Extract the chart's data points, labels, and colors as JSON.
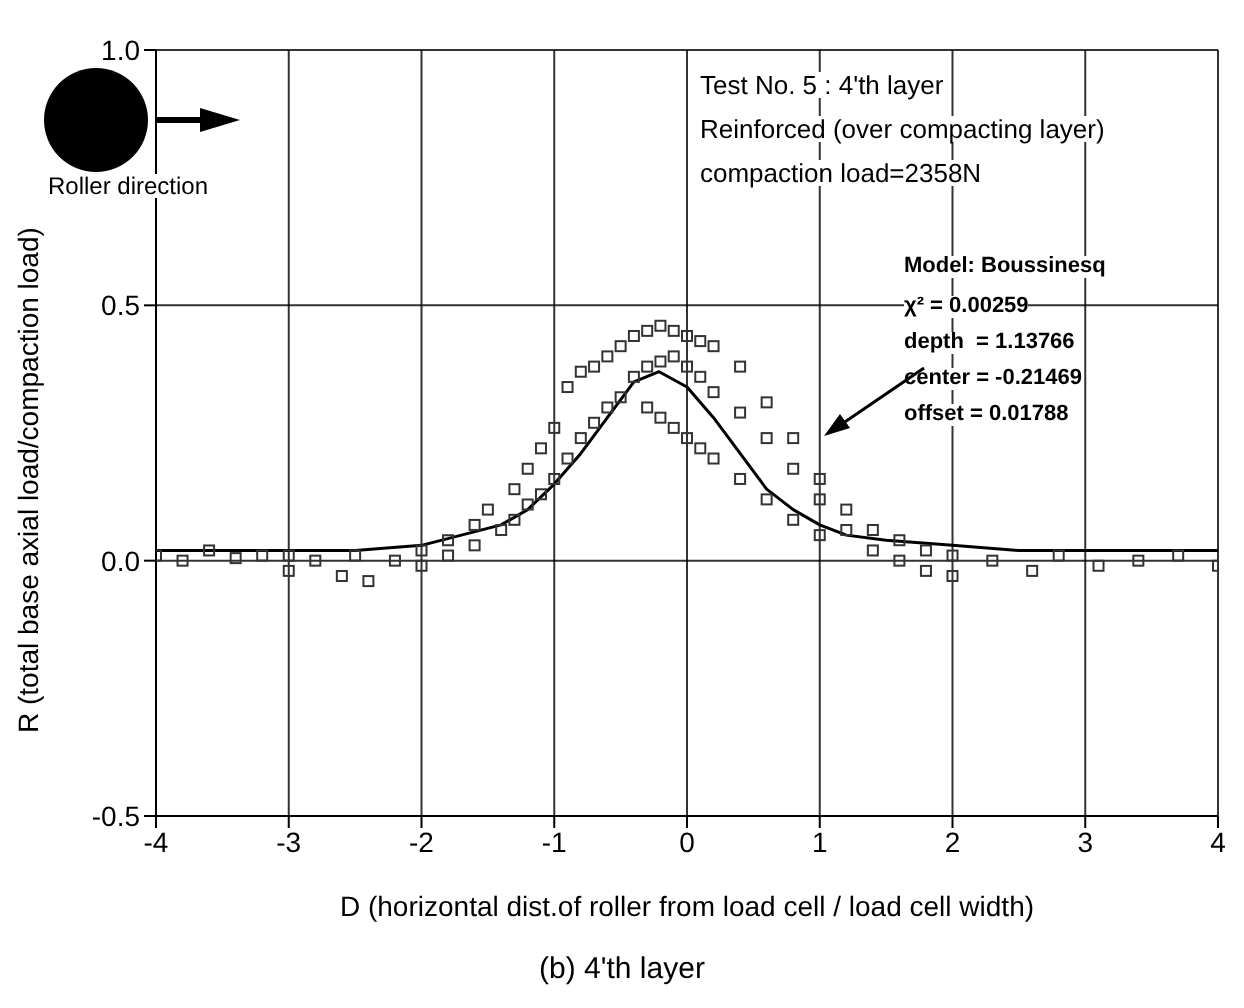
{
  "chart_data": {
    "type": "scatter",
    "title": "(b) 4'th layer",
    "xlabel": "D (horizontal dist.of roller from load cell / load cell width)",
    "ylabel": "R (total base axial load/compaction load)",
    "annotations": [
      "Test No. 5 : 4'th layer",
      "Reinforced (over compacting layer)",
      "compaction load=2358N",
      "Roller direction",
      "Model: Boussinesq",
      "χ² = 0.00259",
      "depth  = 1.13766",
      "center = -0.21469",
      "offset = 0.01788"
    ],
    "xlim": [
      -4,
      4
    ],
    "xticks": [
      -4,
      -3,
      -2,
      -1,
      0,
      1,
      2,
      3,
      4
    ],
    "ylim": [
      -0.5,
      1.0
    ],
    "yticks": [
      -0.5,
      {
        "value": 0,
        "label": "0.0"
      },
      0.5,
      {
        "value": 1,
        "label": "1.0"
      }
    ],
    "grid": true,
    "marker": "square",
    "series": [
      {
        "color": "#333333",
        "x": [
          -4,
          -3.8,
          -3.6,
          -3.4,
          -3.2,
          -3.0,
          -3.0,
          -2.8,
          -2.6,
          -2.5,
          -2.4,
          -2.2,
          -2.0,
          -2.0,
          -1.8,
          -1.8,
          -1.6,
          -1.6,
          -1.5,
          -1.4,
          -1.3,
          -1.3,
          -1.2,
          -1.2,
          -1.1,
          -1.1,
          -1.0,
          -1.0,
          -0.9,
          -0.9,
          -0.8,
          -0.8,
          -0.7,
          -0.7,
          -0.6,
          -0.6,
          -0.5,
          -0.5,
          -0.4,
          -0.4,
          -0.3,
          -0.3,
          -0.3,
          -0.2,
          -0.2,
          -0.2,
          -0.1,
          -0.1,
          -0.1,
          0,
          0,
          0,
          0.1,
          0.1,
          0.1,
          0.2,
          0.2,
          0.2,
          0.4,
          0.4,
          0.4,
          0.6,
          0.6,
          0.6,
          0.8,
          0.8,
          0.8,
          1.0,
          1.0,
          1.0,
          1.2,
          1.2,
          1.4,
          1.4,
          1.6,
          1.6,
          1.8,
          1.8,
          2.0,
          2.0,
          2.3,
          2.6,
          2.8,
          3.1,
          3.4,
          3.7,
          4.0
        ],
        "values": [
          0.01,
          0.0,
          0.02,
          0.005,
          0.01,
          -0.02,
          0.01,
          0.0,
          -0.03,
          0.01,
          -0.04,
          0.0,
          0.02,
          -0.01,
          0.04,
          0.01,
          0.07,
          0.03,
          0.1,
          0.06,
          0.14,
          0.08,
          0.18,
          0.11,
          0.22,
          0.13,
          0.26,
          0.16,
          0.34,
          0.2,
          0.37,
          0.24,
          0.38,
          0.27,
          0.4,
          0.3,
          0.42,
          0.32,
          0.44,
          0.36,
          0.45,
          0.38,
          0.3,
          0.46,
          0.39,
          0.28,
          0.45,
          0.4,
          0.26,
          0.44,
          0.38,
          0.24,
          0.43,
          0.36,
          0.22,
          0.42,
          0.33,
          0.2,
          0.38,
          0.29,
          0.16,
          0.31,
          0.24,
          0.12,
          0.24,
          0.18,
          0.08,
          0.16,
          0.12,
          0.05,
          0.1,
          0.06,
          0.06,
          0.02,
          0.04,
          0.0,
          0.02,
          -0.02,
          0.01,
          -0.03,
          0.0,
          -0.02,
          0.01,
          -0.01,
          0.0,
          0.01,
          -0.01
        ]
      },
      {
        "type": "line",
        "color": "#000000",
        "marker": "none",
        "x": [
          -4,
          -3,
          -2.5,
          -2,
          -1.7,
          -1.4,
          -1.2,
          -1,
          -0.8,
          -0.6,
          -0.4,
          -0.21,
          0,
          0.2,
          0.4,
          0.6,
          0.8,
          1,
          1.2,
          1.5,
          2,
          2.5,
          3,
          4
        ],
        "values": [
          0.02,
          0.02,
          0.02,
          0.03,
          0.05,
          0.07,
          0.1,
          0.15,
          0.21,
          0.28,
          0.35,
          0.37,
          0.34,
          0.28,
          0.21,
          0.14,
          0.1,
          0.07,
          0.05,
          0.04,
          0.03,
          0.02,
          0.02,
          0.02
        ]
      }
    ]
  }
}
